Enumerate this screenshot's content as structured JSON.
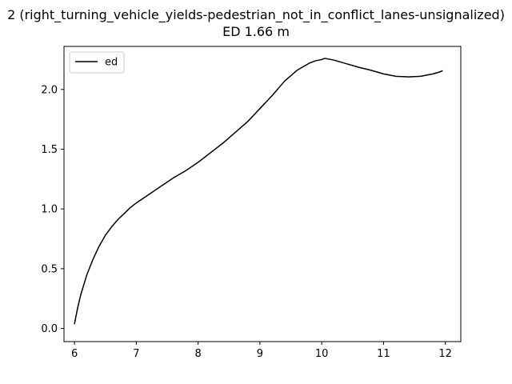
{
  "chart_data": {
    "type": "line",
    "title": "2 (right_turning_vehicle_yields-pedestrian_not_in_conflict_lanes-unsignalized)",
    "subtitle": "ED 1.66 m",
    "xlabel": "",
    "ylabel": "",
    "xlim": [
      5.83,
      12.25
    ],
    "ylim": [
      -0.11,
      2.36
    ],
    "xticks": [
      6,
      7,
      8,
      9,
      10,
      11,
      12
    ],
    "yticks": [
      0.0,
      0.5,
      1.0,
      1.5,
      2.0
    ],
    "xtick_labels": [
      "6",
      "7",
      "8",
      "9",
      "10",
      "11",
      "12"
    ],
    "ytick_labels": [
      "0.0",
      "0.5",
      "1.0",
      "1.5",
      "2.0"
    ],
    "grid": false,
    "legend": {
      "position": "upper-left",
      "entries": [
        "ed"
      ]
    },
    "series": [
      {
        "name": "ed",
        "color": "#000000",
        "x": [
          6.0,
          6.05,
          6.1,
          6.2,
          6.3,
          6.4,
          6.5,
          6.6,
          6.7,
          6.8,
          6.9,
          7.0,
          7.2,
          7.4,
          7.6,
          7.8,
          8.0,
          8.2,
          8.4,
          8.6,
          8.8,
          9.0,
          9.2,
          9.4,
          9.6,
          9.8,
          9.9,
          10.0,
          10.05,
          10.1,
          10.2,
          10.3,
          10.4,
          10.5,
          10.6,
          10.8,
          11.0,
          11.2,
          11.4,
          11.6,
          11.8,
          11.9,
          11.95
        ],
        "y": [
          0.04,
          0.17,
          0.28,
          0.45,
          0.58,
          0.69,
          0.78,
          0.85,
          0.91,
          0.96,
          1.01,
          1.05,
          1.12,
          1.19,
          1.26,
          1.32,
          1.39,
          1.47,
          1.55,
          1.64,
          1.73,
          1.84,
          1.95,
          2.07,
          2.16,
          2.22,
          2.24,
          2.25,
          2.26,
          2.255,
          2.245,
          2.23,
          2.215,
          2.2,
          2.185,
          2.16,
          2.13,
          2.11,
          2.105,
          2.11,
          2.13,
          2.145,
          2.155
        ]
      }
    ]
  }
}
